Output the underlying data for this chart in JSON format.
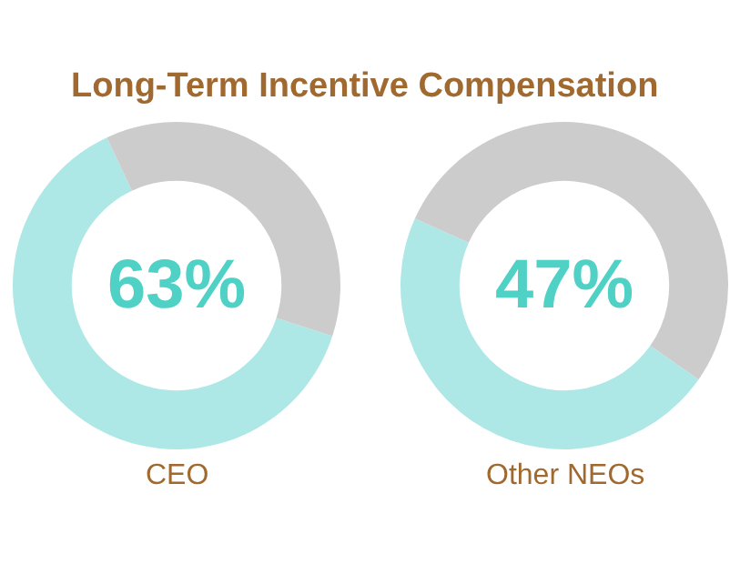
{
  "chart_data": [
    {
      "type": "donut",
      "title": "Long-Term Incentive Compensation",
      "xlabel": "CEO",
      "categories": [
        null,
        null
      ],
      "values": [
        63,
        37
      ],
      "colors": [
        "#aee8e6",
        "#cccccc"
      ],
      "annotations": [
        "63%"
      ]
    },
    {
      "type": "donut",
      "xlabel": "Other NEOs",
      "categories": [
        null,
        null
      ],
      "values": [
        47,
        53
      ],
      "colors": [
        "#aee8e6",
        "#cccccc"
      ],
      "annotations": [
        "47%"
      ]
    }
  ]
}
